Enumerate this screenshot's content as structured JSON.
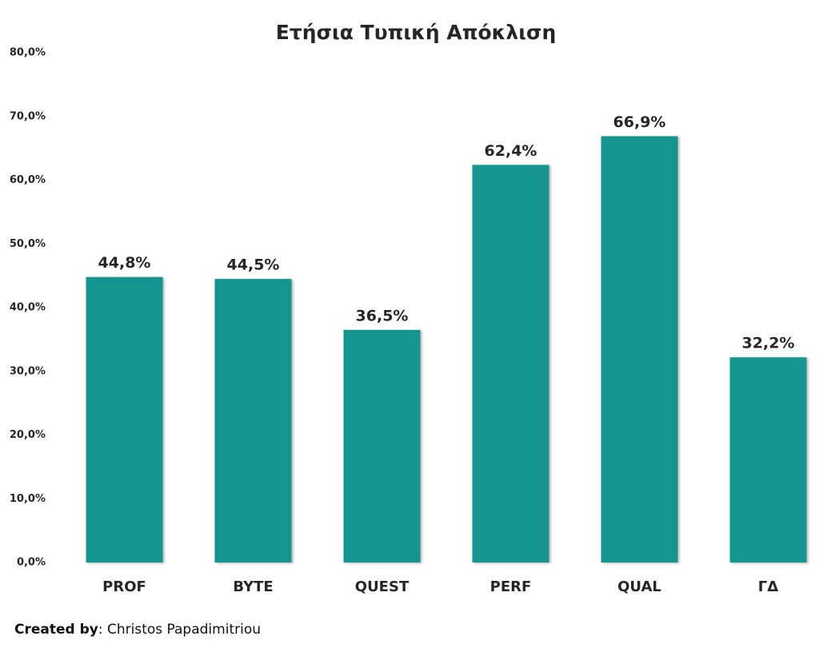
{
  "chart_data": {
    "type": "bar",
    "title": "Ετήσια Τυπική Απόκλιση",
    "categories": [
      "PROF",
      "BYTE",
      "QUEST",
      "PERF",
      "QUAL",
      "ΓΔ"
    ],
    "values": [
      44.8,
      44.5,
      36.5,
      62.4,
      66.9,
      32.2
    ],
    "value_labels": [
      "44,8%",
      "44,5%",
      "36,5%",
      "62,4%",
      "66,9%",
      "32,2%"
    ],
    "color": "#16948f",
    "ylim": [
      0,
      80
    ],
    "yticks": [
      {
        "value": 0,
        "label": "0,0%"
      },
      {
        "value": 10,
        "label": "10,0%"
      },
      {
        "value": 20,
        "label": "20,0%"
      },
      {
        "value": 30,
        "label": "30,0%"
      },
      {
        "value": 40,
        "label": "40,0%"
      },
      {
        "value": 50,
        "label": "50,0%"
      },
      {
        "value": 60,
        "label": "60,0%"
      },
      {
        "value": 70,
        "label": "70,0%"
      },
      {
        "value": 80,
        "label": "80,0%"
      }
    ],
    "grid": false
  },
  "footer": {
    "label": "Created by",
    "text": ": Christos Papadimitriou"
  }
}
